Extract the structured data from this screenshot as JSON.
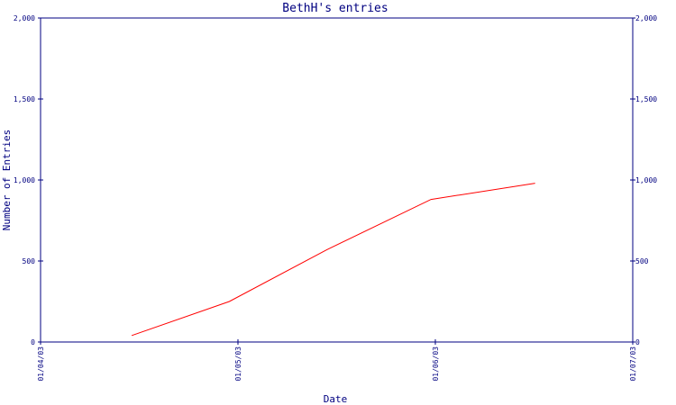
{
  "chart_data": {
    "type": "line",
    "title": "BethH's entries",
    "xlabel": "Date",
    "ylabel": "Number of Entries",
    "x_ticks": [
      "01/04/03",
      "01/05/03",
      "01/06/03",
      "01/07/03"
    ],
    "y_ticks": [
      "0",
      "500",
      "1,000",
      "1,500",
      "2,000"
    ],
    "ylim": [
      0,
      2000
    ],
    "xlim": [
      "2003-04-01",
      "2003-07-01"
    ],
    "y_axis_right": true,
    "grid": false,
    "legend": "none",
    "series": [
      {
        "color": "#ff0000",
        "x": [
          "2003-04-15",
          "2003-04-30",
          "2003-05-15",
          "2003-05-31",
          "2003-06-16"
        ],
        "values": [
          40,
          250,
          570,
          880,
          980
        ]
      }
    ]
  },
  "colors": {
    "axis": "#000080",
    "text": "#000080",
    "series": "#ff0000",
    "background": "#ffffff"
  }
}
